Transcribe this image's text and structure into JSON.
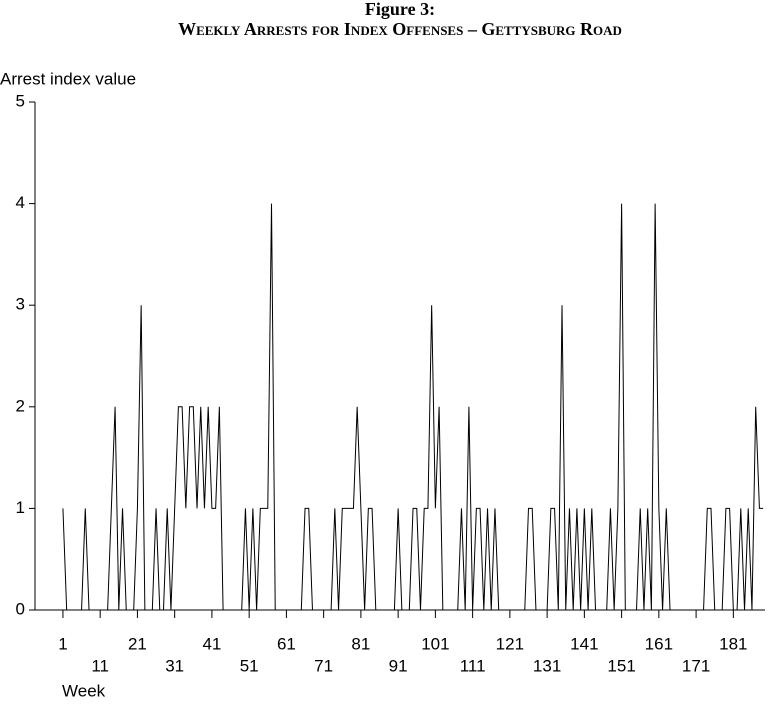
{
  "chart_data": {
    "type": "line",
    "title": "Figure 3:",
    "subtitle": "Weekly Arrests for Index Offenses – Gettysburg Road",
    "y_label": "Arrest index value",
    "x_label": "Week",
    "color": "#000000",
    "x": [
      1,
      2,
      3,
      4,
      5,
      6,
      7,
      8,
      9,
      10,
      11,
      12,
      13,
      14,
      15,
      16,
      17,
      18,
      19,
      20,
      21,
      22,
      23,
      24,
      25,
      26,
      27,
      28,
      29,
      30,
      31,
      32,
      33,
      34,
      35,
      36,
      37,
      38,
      39,
      40,
      41,
      42,
      43,
      44,
      45,
      46,
      47,
      48,
      49,
      50,
      51,
      52,
      53,
      54,
      55,
      56,
      57,
      58,
      59,
      60,
      61,
      62,
      63,
      64,
      65,
      66,
      67,
      68,
      69,
      70,
      71,
      72,
      73,
      74,
      75,
      76,
      77,
      78,
      79,
      80,
      81,
      82,
      83,
      84,
      85,
      86,
      87,
      88,
      89,
      90,
      91,
      92,
      93,
      94,
      95,
      96,
      97,
      98,
      99,
      100,
      101,
      102,
      103,
      104,
      105,
      106,
      107,
      108,
      109,
      110,
      111,
      112,
      113,
      114,
      115,
      116,
      117,
      118,
      119,
      120,
      121,
      122,
      123,
      124,
      125,
      126,
      127,
      128,
      129,
      130,
      131,
      132,
      133,
      134,
      135,
      136,
      137,
      138,
      139,
      140,
      141,
      142,
      143,
      144,
      145,
      146,
      147,
      148,
      149,
      150,
      151,
      152,
      153,
      154,
      155,
      156,
      157,
      158,
      159,
      160,
      161,
      162,
      163,
      164,
      165,
      166,
      167,
      168,
      169,
      170,
      171,
      172,
      173,
      174,
      175,
      176,
      177,
      178,
      179,
      180,
      181,
      182,
      183,
      184,
      185,
      186,
      187,
      188,
      189
    ],
    "values": [
      1,
      0,
      0,
      0,
      0,
      0,
      1,
      0,
      0,
      0,
      0,
      0,
      0,
      1,
      2,
      0,
      1,
      0,
      0,
      0,
      1,
      3,
      0,
      0,
      0,
      1,
      0,
      0,
      1,
      0,
      1,
      2,
      2,
      1,
      2,
      2,
      1,
      2,
      1,
      2,
      1,
      1,
      2,
      0,
      0,
      0,
      0,
      0,
      0,
      1,
      0,
      1,
      0,
      1,
      1,
      1,
      4,
      0,
      0,
      0,
      0,
      0,
      0,
      0,
      0,
      1,
      1,
      0,
      0,
      0,
      0,
      0,
      0,
      1,
      0,
      1,
      1,
      1,
      1,
      2,
      1,
      0,
      1,
      1,
      0,
      0,
      0,
      0,
      0,
      0,
      1,
      0,
      0,
      0,
      1,
      1,
      0,
      1,
      1,
      3,
      1,
      2,
      0,
      0,
      0,
      0,
      0,
      1,
      0,
      2,
      0,
      1,
      1,
      0,
      1,
      0,
      1,
      0,
      0,
      0,
      0,
      0,
      0,
      0,
      0,
      1,
      1,
      0,
      0,
      0,
      0,
      1,
      1,
      0,
      3,
      0,
      1,
      0,
      1,
      0,
      1,
      0,
      1,
      0,
      0,
      0,
      0,
      1,
      0,
      1,
      4,
      0,
      0,
      0,
      0,
      1,
      0,
      1,
      0,
      4,
      1,
      0,
      1,
      0,
      0,
      0,
      0,
      0,
      0,
      0,
      0,
      0,
      0,
      1,
      1,
      0,
      0,
      0,
      1,
      1,
      0,
      0,
      1,
      0,
      1,
      0,
      2,
      1,
      1
    ],
    "xlim": [
      -6.5,
      189.5
    ],
    "xticks": [
      1,
      11,
      21,
      31,
      41,
      51,
      61,
      71,
      81,
      91,
      101,
      111,
      121,
      131,
      141,
      151,
      161,
      171,
      181
    ],
    "ylim": [
      0,
      5
    ],
    "yticks": [
      0,
      1,
      2,
      3,
      4,
      5
    ]
  }
}
